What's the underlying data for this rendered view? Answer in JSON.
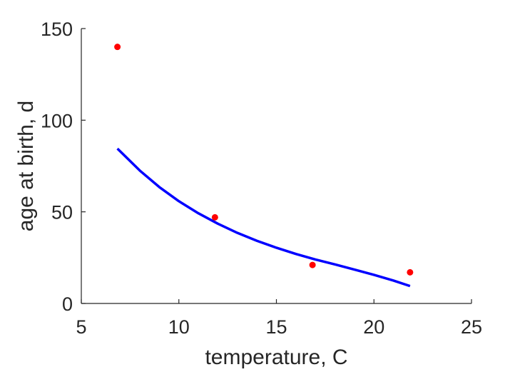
{
  "chart_data": {
    "type": "scatter",
    "title": "",
    "xlabel": "temperature, C",
    "ylabel": "age at birth, d",
    "xlim": [
      5,
      25
    ],
    "ylim": [
      0,
      150
    ],
    "xticks": [
      5,
      10,
      15,
      20,
      25
    ],
    "yticks": [
      0,
      50,
      100,
      150
    ],
    "grid": false,
    "series": [
      {
        "kind": "points",
        "color": "#ff0000",
        "x": [
          6.85,
          11.85,
          16.85,
          21.85
        ],
        "y": [
          140,
          47,
          21,
          17
        ]
      },
      {
        "kind": "line",
        "color": "#0000ff",
        "x": [
          6.85,
          8,
          9,
          10,
          11,
          12,
          13,
          14,
          15,
          16,
          17,
          18,
          19,
          20,
          21,
          21.85
        ],
        "y": [
          84.5,
          72.5,
          63.5,
          55.8,
          49.2,
          43.5,
          38.5,
          34.2,
          30.4,
          27,
          24,
          21.3,
          18.5,
          15.6,
          12.5,
          9.5
        ]
      }
    ]
  }
}
